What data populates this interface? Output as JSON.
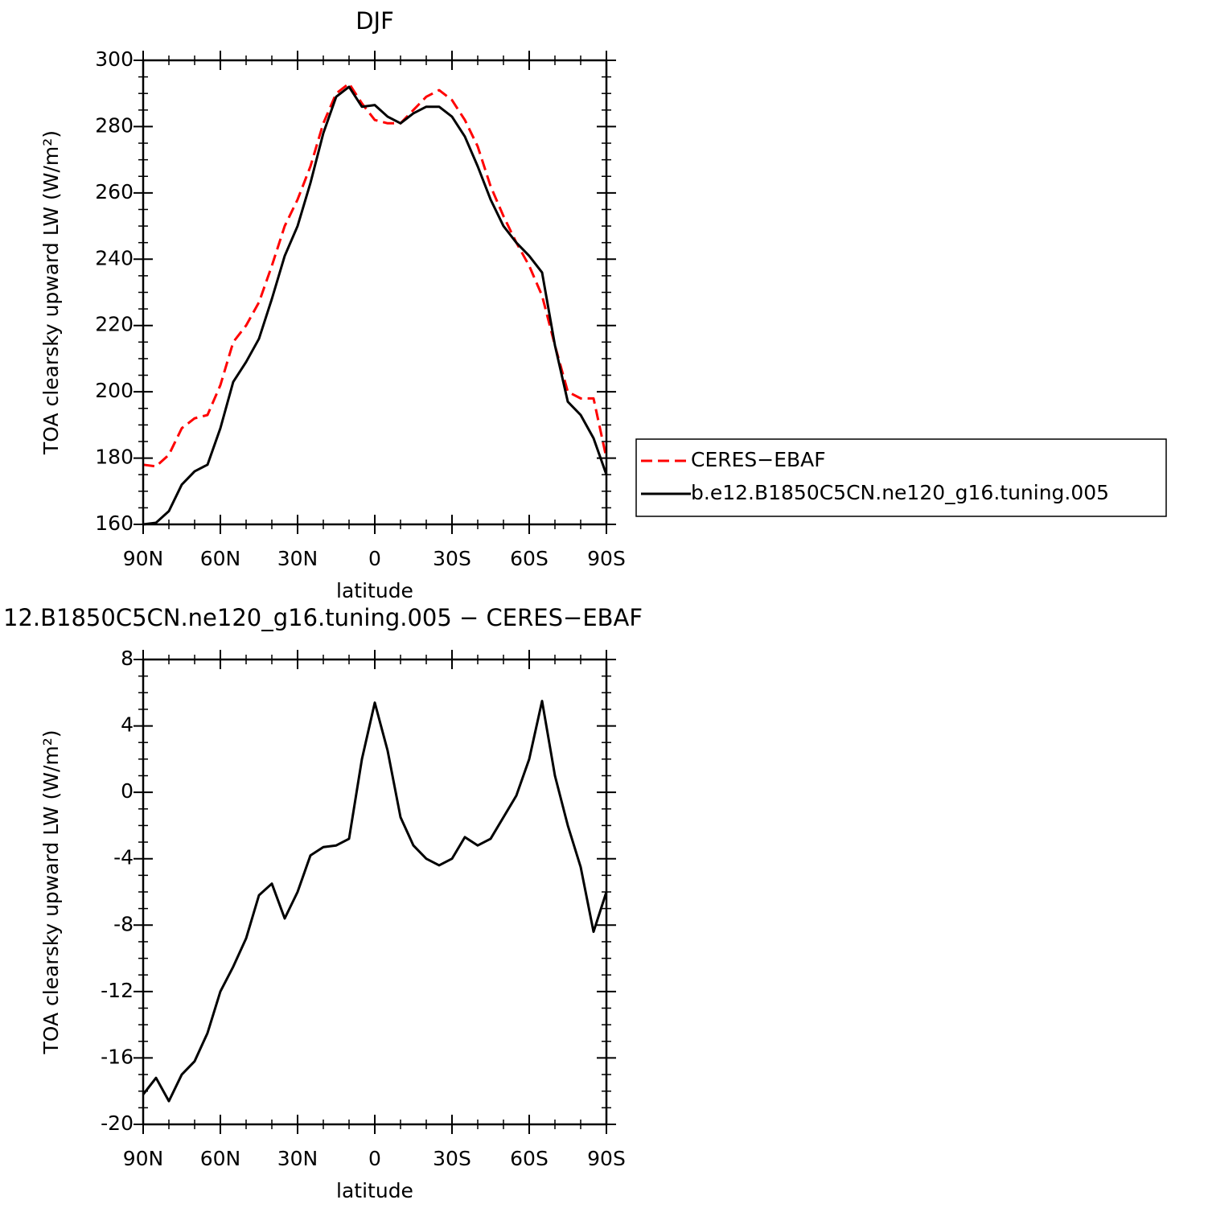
{
  "chart_data": [
    {
      "type": "line",
      "title": "DJF",
      "xlabel": "latitude",
      "ylabel": "TOA clearsky upward LW (W/m²)",
      "x": [
        90,
        85,
        80,
        75,
        70,
        65,
        60,
        55,
        50,
        45,
        40,
        35,
        30,
        25,
        20,
        15,
        10,
        5,
        0,
        -5,
        -10,
        -15,
        -20,
        -25,
        -30,
        -35,
        -40,
        -45,
        -50,
        -55,
        -60,
        -65,
        -70,
        -75,
        -80,
        -85,
        -90
      ],
      "xlim": [
        90,
        -90
      ],
      "xticks": [
        {
          "value": 90,
          "label": "90N"
        },
        {
          "value": 60,
          "label": "60N"
        },
        {
          "value": 30,
          "label": "30N"
        },
        0,
        {
          "value": -30,
          "label": "30S"
        },
        {
          "value": -60,
          "label": "60S"
        },
        {
          "value": -90,
          "label": "90S"
        }
      ],
      "ylim": [
        160,
        300
      ],
      "yticks": [
        160,
        180,
        200,
        220,
        240,
        260,
        280,
        300
      ],
      "legend": "right",
      "series": [
        {
          "name": "CERES−EBAF",
          "color": "#ff0000",
          "dashed": true,
          "values": [
            178,
            177.5,
            181,
            189,
            192,
            193,
            202,
            215,
            220,
            227,
            238,
            250,
            258,
            268,
            281,
            290,
            293,
            287,
            282,
            281,
            281,
            285,
            289,
            291,
            288,
            282,
            274,
            262,
            253,
            245,
            238,
            229,
            214,
            200,
            198,
            198,
            180
          ]
        },
        {
          "name": "b.e12.B1850C5CN.ne120_g16.tuning.005",
          "color": "#000000",
          "dashed": false,
          "values": [
            160,
            160.5,
            164,
            172,
            176,
            178,
            189,
            203,
            209,
            216,
            228,
            241,
            250,
            263,
            278,
            289,
            292,
            286,
            286.5,
            283,
            281,
            284,
            286,
            286,
            283,
            277,
            268,
            258,
            250,
            245,
            241,
            236,
            214,
            197,
            193,
            186,
            175
          ]
        }
      ]
    },
    {
      "type": "line",
      "title": "12.B1850C5CN.ne120_g16.tuning.005 − CERES−EBAF",
      "xlabel": "latitude",
      "ylabel": "TOA clearsky upward LW (W/m²)",
      "x": [
        90,
        85,
        80,
        75,
        70,
        65,
        60,
        55,
        50,
        45,
        40,
        35,
        30,
        25,
        20,
        15,
        10,
        5,
        0,
        -5,
        -10,
        -15,
        -20,
        -25,
        -30,
        -35,
        -40,
        -45,
        -50,
        -55,
        -60,
        -65,
        -70,
        -75,
        -80,
        -85,
        -90
      ],
      "xlim": [
        90,
        -90
      ],
      "xticks": [
        {
          "value": 90,
          "label": "90N"
        },
        {
          "value": 60,
          "label": "60N"
        },
        {
          "value": 30,
          "label": "30N"
        },
        0,
        {
          "value": -30,
          "label": "30S"
        },
        {
          "value": -60,
          "label": "60S"
        },
        {
          "value": -90,
          "label": "90S"
        }
      ],
      "ylim": [
        -20,
        8
      ],
      "yticks": [
        -20,
        -16,
        -12,
        -8,
        -4,
        0,
        4,
        8
      ],
      "series": [
        {
          "color": "#000000",
          "dashed": false,
          "values": [
            -18.2,
            -17.2,
            -18.6,
            -17,
            -16.2,
            -14.5,
            -12,
            -10.5,
            -8.8,
            -6.2,
            -5.5,
            -7.6,
            -6,
            -3.8,
            -3.3,
            -3.2,
            -2.8,
            2,
            5.4,
            2.5,
            -1.5,
            -3.2,
            -4,
            -4.4,
            -4,
            -2.7,
            -3.2,
            -2.8,
            -1.5,
            -0.2,
            2,
            5.5,
            1,
            -2,
            -4.5,
            -8.4,
            -6
          ]
        }
      ]
    }
  ]
}
